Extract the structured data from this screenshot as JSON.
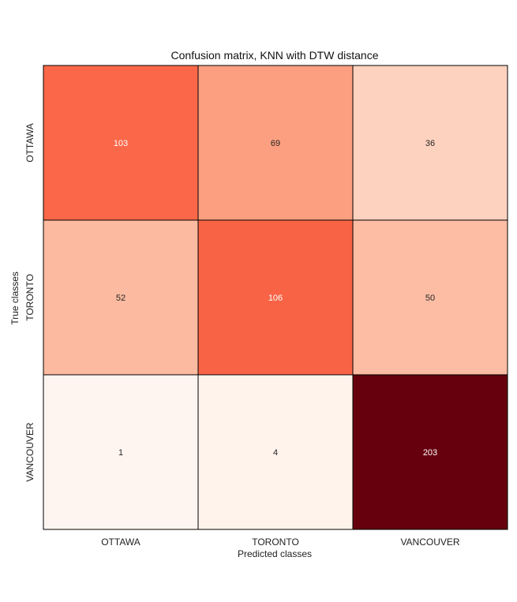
{
  "chart_data": {
    "type": "heatmap",
    "title": "Confusion matrix, KNN with DTW distance",
    "xlabel": "Predicted classes",
    "ylabel": "True classes",
    "x_categories": [
      "OTTAWA",
      "TORONTO",
      "VANCOUVER"
    ],
    "y_categories": [
      "OTTAWA",
      "TORONTO",
      "VANCOUVER"
    ],
    "values": [
      [
        103,
        69,
        36
      ],
      [
        52,
        106,
        50
      ],
      [
        1,
        4,
        203
      ]
    ],
    "value_range": [
      1,
      203
    ],
    "colormap": "Reds",
    "colormap_low": "#fff5f0",
    "colormap_high": "#67000d",
    "cell_border_color": "#000000",
    "grid": false,
    "legend": "none"
  }
}
